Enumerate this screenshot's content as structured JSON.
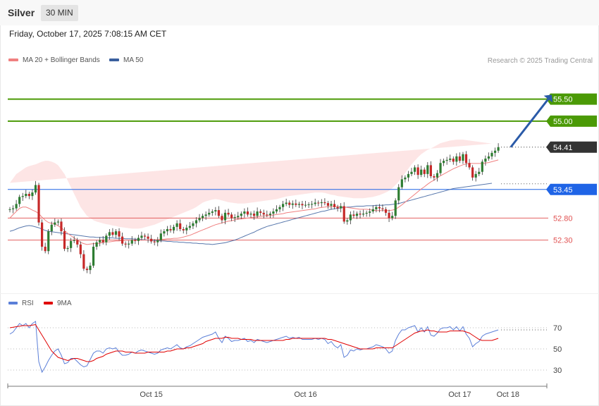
{
  "header": {
    "title": "Silver",
    "timeframe": "30 MIN"
  },
  "datetime": "Friday, October 17, 2025 7:08:15 AM CET",
  "legend": {
    "ma20_label": "MA 20 + Bollinger Bands",
    "ma20_color": "#f08080",
    "ma50_label": "MA 50",
    "ma50_color": "#3a5f9e"
  },
  "copyright": "Research © 2025 Trading Central",
  "rsi_legend": {
    "rsi_label": "RSI",
    "rsi_color": "#5b7fd8",
    "ma_label": "9MA",
    "ma_color": "#e00000"
  },
  "colors": {
    "up": "#2e7d32",
    "down": "#c62828",
    "green_level": "#4b9a06",
    "blue_level": "#1f64e6",
    "dark_tag": "#333333",
    "red_level": "#e05050",
    "band_fill": "#fde2e2"
  },
  "chart_data": [
    {
      "type": "candlestick",
      "title": "Silver",
      "y_range": [
        51.43,
        55.99
      ],
      "x_ticks": [
        {
          "label": "Oct 15",
          "index": 44
        },
        {
          "label": "Oct 16",
          "index": 92
        },
        {
          "label": "Oct 17",
          "index": 140
        },
        {
          "label": "Oct 18",
          "index": 155
        }
      ],
      "close_start": 53.0,
      "closes": [
        53.0,
        53.02,
        53.12,
        53.28,
        53.3,
        53.35,
        53.3,
        53.38,
        53.55,
        52.7,
        52.15,
        52.05,
        52.5,
        52.65,
        52.7,
        52.72,
        52.5,
        52.1,
        52.12,
        52.28,
        52.3,
        52.2,
        51.98,
        51.65,
        51.62,
        51.72,
        52.15,
        52.25,
        52.3,
        52.25,
        52.4,
        52.48,
        52.42,
        52.5,
        52.38,
        52.22,
        52.2,
        52.22,
        52.3,
        52.28,
        52.35,
        52.4,
        52.38,
        52.33,
        52.27,
        52.25,
        52.3,
        52.45,
        52.5,
        52.55,
        52.52,
        52.6,
        52.68,
        52.55,
        52.52,
        52.58,
        52.62,
        52.68,
        52.75,
        52.8,
        52.85,
        52.88,
        52.92,
        52.95,
        52.98,
        52.85,
        52.75,
        52.92,
        52.88,
        52.8,
        52.82,
        52.85,
        52.9,
        52.95,
        52.88,
        52.9,
        52.85,
        52.95,
        52.92,
        52.88,
        52.87,
        52.9,
        52.95,
        53.0,
        53.05,
        53.12,
        53.15,
        53.1,
        53.13,
        53.1,
        53.12,
        53.09,
        53.1,
        53.11,
        53.12,
        53.15,
        53.14,
        53.16,
        53.14,
        53.08,
        53.12,
        53.05,
        53.02,
        53.07,
        52.72,
        52.75,
        52.88,
        52.85,
        52.9,
        52.88,
        52.9,
        52.92,
        52.95,
        53.0,
        53.05,
        53.02,
        53.0,
        52.92,
        52.8,
        52.85,
        53.2,
        53.5,
        53.68,
        53.72,
        53.8,
        53.85,
        53.95,
        53.78,
        53.9,
        53.8,
        54.0,
        53.75,
        53.72,
        53.82,
        54.05,
        54.1,
        54.12,
        54.15,
        54.08,
        54.2,
        54.1,
        54.25,
        54.05,
        53.95,
        53.72,
        53.8,
        53.85,
        54.08,
        54.15,
        54.2,
        54.28,
        54.33,
        54.41
      ],
      "ma20": [
        52.8,
        52.88,
        52.95,
        53.02,
        53.05,
        53.05,
        53.02,
        52.98,
        52.95,
        52.9,
        52.82,
        52.75,
        52.7,
        52.68,
        52.67,
        52.62,
        52.58,
        52.52,
        52.45,
        52.4,
        52.35,
        52.3,
        52.25,
        52.22,
        52.2,
        52.21,
        52.22,
        52.22,
        52.23,
        52.25,
        52.26,
        52.26,
        52.27,
        52.28,
        52.28,
        52.29,
        52.3,
        52.3,
        52.3,
        52.3,
        52.3,
        52.3,
        52.3,
        52.3,
        52.31,
        52.31,
        52.31,
        52.32,
        52.32,
        52.33,
        52.33,
        52.34,
        52.34,
        52.35,
        52.37,
        52.39,
        52.41,
        52.44,
        52.47,
        52.5,
        52.53,
        52.56,
        52.59,
        52.62,
        52.65,
        52.67,
        52.69,
        52.71,
        52.73,
        52.74,
        52.76,
        52.77,
        52.78,
        52.79,
        52.8,
        52.81,
        52.82,
        52.83,
        52.84,
        52.85,
        52.85,
        52.86,
        52.87,
        52.88,
        52.89,
        52.9,
        52.92,
        52.93,
        52.94,
        52.95,
        52.96,
        52.97,
        52.98,
        52.99,
        53.0,
        53.01,
        53.03,
        53.04,
        53.05,
        53.06,
        53.06,
        53.06,
        53.06,
        53.06,
        53.05,
        53.04,
        53.03,
        53.02,
        53.01,
        53.0,
        53.0,
        53.0,
        52.99,
        52.98,
        52.97,
        52.97,
        52.97,
        52.97,
        52.97,
        52.98,
        53.0,
        53.05,
        53.1,
        53.16,
        53.22,
        53.28,
        53.34,
        53.4,
        53.46,
        53.51,
        53.57,
        53.62,
        53.66,
        53.71,
        53.76,
        53.8,
        53.84,
        53.88,
        53.92,
        53.95,
        53.98,
        54.01,
        54.03,
        54.04,
        54.04,
        54.04,
        54.04,
        54.04,
        54.05,
        54.06,
        54.08,
        54.1,
        54.12
      ],
      "ma50": [
        52.5,
        52.52,
        52.55,
        52.58,
        52.6,
        52.62,
        52.63,
        52.62,
        52.6,
        52.58,
        52.55,
        52.52,
        52.5,
        52.49,
        52.48,
        52.47,
        52.46,
        52.45,
        52.44,
        52.43,
        52.42,
        52.41,
        52.4,
        52.39,
        52.38,
        52.37,
        52.37,
        52.36,
        52.36,
        52.36,
        52.35,
        52.35,
        52.35,
        52.34,
        52.34,
        52.34,
        52.33,
        52.33,
        52.33,
        52.32,
        52.32,
        52.31,
        52.31,
        52.3,
        52.3,
        52.29,
        52.29,
        52.28,
        52.28,
        52.27,
        52.27,
        52.26,
        52.26,
        52.25,
        52.25,
        52.24,
        52.24,
        52.23,
        52.23,
        52.22,
        52.22,
        52.21,
        52.21,
        52.2,
        52.21,
        52.22,
        52.23,
        52.24,
        52.26,
        52.28,
        52.3,
        52.33,
        52.36,
        52.39,
        52.42,
        52.45,
        52.48,
        52.52,
        52.55,
        52.58,
        52.61,
        52.63,
        52.65,
        52.67,
        52.69,
        52.71,
        52.73,
        52.75,
        52.77,
        52.79,
        52.81,
        52.83,
        52.85,
        52.87,
        52.89,
        52.91,
        52.93,
        52.95,
        52.96,
        52.98,
        53.0,
        53.01,
        53.02,
        53.03,
        53.04,
        53.05,
        53.05,
        53.06,
        53.07,
        53.07,
        53.07,
        53.08,
        53.08,
        53.08,
        53.09,
        53.09,
        53.09,
        53.1,
        53.1,
        53.11,
        53.12,
        53.13,
        53.15,
        53.17,
        53.19,
        53.21,
        53.23,
        53.25,
        53.27,
        53.29,
        53.31,
        53.33,
        53.35,
        53.37,
        53.39,
        53.41,
        53.43,
        53.45,
        53.47,
        53.48,
        53.49,
        53.5,
        53.51,
        53.52,
        53.53,
        53.54,
        53.55,
        53.56,
        53.57,
        53.58,
        53.59
      ],
      "bb_upper": [
        53.6,
        53.7,
        53.8,
        53.85,
        53.9,
        53.95,
        53.98,
        54.0,
        54.02,
        54.05,
        54.08,
        54.1,
        54.1,
        54.08,
        54.05,
        54.0,
        53.9,
        53.8,
        53.65,
        53.5,
        53.35,
        53.2,
        53.05,
        52.95,
        52.85,
        52.8,
        52.75,
        52.72,
        52.7,
        52.68,
        52.66,
        52.65,
        52.63,
        52.62,
        52.6,
        52.59,
        52.58,
        52.57,
        52.56,
        52.56,
        52.56,
        52.57,
        52.59,
        52.61,
        52.63,
        52.65,
        52.68,
        52.71,
        52.74,
        52.77,
        52.8,
        52.83,
        52.86,
        52.89,
        52.92,
        52.95,
        52.98,
        53.01,
        53.05,
        53.1,
        53.15,
        53.18,
        53.2,
        53.22,
        53.23,
        53.22,
        53.2,
        53.18,
        53.16,
        53.15,
        53.14,
        53.13,
        53.13,
        53.13,
        53.14,
        53.15,
        53.16,
        53.17,
        53.18,
        53.19,
        53.2,
        53.21,
        53.22,
        53.23,
        53.25,
        53.27,
        53.29,
        53.3,
        53.31,
        53.32,
        53.33,
        53.34,
        53.35,
        53.36,
        53.37,
        53.38,
        53.38,
        53.38,
        53.37,
        53.35,
        53.33,
        53.32,
        53.3,
        53.29,
        53.28,
        53.27,
        53.26,
        53.25,
        53.25,
        53.25,
        53.25,
        53.26,
        53.27,
        53.28,
        53.3,
        53.32,
        53.35,
        53.38,
        53.42,
        53.48,
        53.55,
        53.63,
        53.72,
        53.82,
        53.92,
        54.02,
        54.1,
        54.18,
        54.25,
        54.3,
        54.35,
        54.38,
        54.42,
        54.46,
        54.5,
        54.52,
        54.54,
        54.56,
        54.57,
        54.58,
        54.58,
        54.58,
        54.57,
        54.56,
        54.55,
        54.54,
        54.53,
        54.52,
        54.51,
        54.5,
        54.49
      ],
      "bb_lower": [
        52.2,
        52.15,
        52.1,
        52.05,
        52.0,
        51.95,
        51.92,
        51.9,
        51.88,
        51.85,
        51.8,
        51.75,
        51.7,
        51.66,
        51.62,
        51.58,
        51.55,
        51.53,
        51.52,
        51.52,
        51.53,
        51.55,
        51.57,
        51.58,
        51.6,
        51.62,
        51.64,
        51.66,
        51.68,
        51.7,
        51.72,
        51.73,
        51.74,
        51.75,
        51.76,
        51.77,
        51.78,
        51.79,
        51.8,
        51.81,
        51.82,
        51.83,
        51.84,
        51.85,
        51.87,
        51.88,
        51.9,
        51.93,
        51.96,
        51.99,
        52.02,
        52.05,
        52.08,
        52.1,
        52.12,
        52.14,
        52.16,
        52.18,
        52.2,
        52.22,
        52.24,
        52.26,
        52.28,
        52.3,
        52.32,
        52.34,
        52.36,
        52.38,
        52.4,
        52.42,
        52.44,
        52.46,
        52.48,
        52.5,
        52.52,
        52.53,
        52.54,
        52.55,
        52.56,
        52.57,
        52.58,
        52.58,
        52.59,
        52.6,
        52.61,
        52.62,
        52.63,
        52.64,
        52.65,
        52.66,
        52.67,
        52.68,
        52.69,
        52.7,
        52.71,
        52.72,
        52.72,
        52.73,
        52.73,
        52.74,
        52.74,
        52.74,
        52.74,
        52.74,
        52.74,
        52.75,
        52.75,
        52.75,
        52.76,
        52.76,
        52.77,
        52.77,
        52.78,
        52.78,
        52.79,
        52.79,
        52.8,
        52.8,
        52.81,
        52.81,
        52.82,
        52.82,
        52.83,
        52.84,
        52.85,
        52.87,
        52.89,
        52.92,
        52.95,
        52.99,
        53.03,
        53.08,
        53.13,
        53.18,
        53.23,
        53.28,
        53.33,
        53.37,
        53.41,
        53.45,
        53.49,
        53.52,
        53.55,
        53.58,
        53.61,
        53.64,
        53.66,
        53.68,
        53.7,
        53.72,
        53.74,
        53.76,
        53.78
      ],
      "levels": [
        {
          "value": 55.5,
          "label": "55.50",
          "kind": "resistance"
        },
        {
          "value": 55.0,
          "label": "55.00",
          "kind": "resistance"
        },
        {
          "value": 54.41,
          "label": "54.41",
          "kind": "last"
        },
        {
          "value": 53.45,
          "label": "53.45",
          "kind": "pivot"
        },
        {
          "value": 52.8,
          "label": "52.80",
          "kind": "support"
        },
        {
          "value": 52.3,
          "label": "52.30",
          "kind": "support"
        }
      ],
      "arrow": {
        "from": {
          "index": 155,
          "value": 54.41
        },
        "to": {
          "index": 182,
          "value": 55.5
        }
      }
    },
    {
      "type": "line",
      "title": "RSI",
      "y_range": [
        20,
        80
      ],
      "y_ticks": [
        70,
        50,
        30
      ],
      "series": [
        {
          "name": "RSI",
          "values": [
            64,
            66,
            70,
            74,
            72,
            74,
            70,
            74,
            76,
            38,
            28,
            33,
            39,
            44,
            48,
            50,
            44,
            36,
            37,
            41,
            41,
            38,
            35,
            33,
            34,
            40,
            46,
            48,
            48,
            46,
            50,
            51,
            50,
            51,
            47,
            44,
            44,
            45,
            47,
            46,
            48,
            49,
            48,
            47,
            46,
            45,
            46,
            49,
            50,
            51,
            50,
            52,
            54,
            51,
            50,
            52,
            53,
            55,
            57,
            59,
            61,
            62,
            63,
            64,
            66,
            60,
            56,
            62,
            60,
            57,
            58,
            58,
            59,
            60,
            57,
            58,
            56,
            59,
            58,
            57,
            56,
            57,
            58,
            59,
            60,
            61,
            62,
            60,
            61,
            60,
            61,
            59,
            59,
            59,
            59,
            60,
            59,
            60,
            59,
            55,
            57,
            53,
            51,
            54,
            42,
            44,
            49,
            48,
            50,
            49,
            50,
            50,
            51,
            52,
            54,
            53,
            52,
            50,
            46,
            48,
            58,
            64,
            68,
            68,
            70,
            71,
            72,
            66,
            70,
            66,
            71,
            63,
            62,
            65,
            69,
            70,
            70,
            71,
            68,
            71,
            67,
            71,
            64,
            60,
            52,
            55,
            57,
            62,
            64,
            65,
            66,
            67,
            68
          ]
        },
        {
          "name": "9MA",
          "values": [
            70,
            70.5,
            71,
            71.5,
            72,
            72,
            72,
            72.5,
            73,
            68,
            63,
            58,
            53,
            48,
            45,
            42,
            41,
            40,
            39,
            40,
            41,
            41,
            40,
            39,
            38,
            38,
            39,
            41,
            42,
            43,
            45,
            46,
            47,
            48,
            48,
            48,
            47,
            47,
            47,
            46,
            46,
            46,
            46,
            47,
            47,
            47,
            47,
            47,
            47,
            48,
            48,
            49,
            50,
            50,
            50,
            51,
            51,
            52,
            53,
            54,
            55,
            57,
            58,
            59,
            60,
            60,
            60,
            61,
            61,
            60,
            60,
            60,
            59,
            59,
            59,
            59,
            58,
            58,
            58,
            58,
            58,
            58,
            58,
            58,
            58,
            58,
            59,
            59,
            60,
            60,
            60,
            60,
            60,
            60,
            60,
            60,
            60,
            60,
            60,
            59,
            59,
            58,
            57,
            56,
            55,
            54,
            53,
            52,
            51,
            50,
            50,
            50,
            50,
            50,
            51,
            51,
            51,
            51,
            51,
            51,
            53,
            55,
            57,
            59,
            61,
            63,
            65,
            66,
            67,
            67,
            68,
            67,
            67,
            66,
            66,
            66,
            66,
            67,
            67,
            67,
            67,
            67,
            66,
            65,
            63,
            61,
            59,
            58,
            58,
            58,
            58,
            59,
            60
          ]
        }
      ]
    }
  ]
}
